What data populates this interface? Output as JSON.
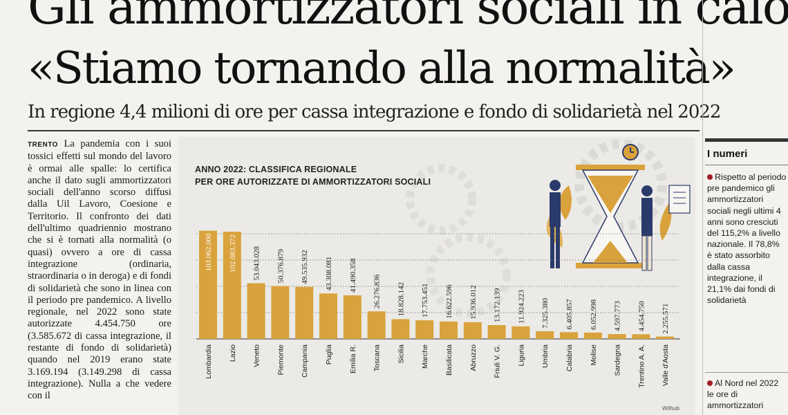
{
  "headline": {
    "line1": "Gli ammortizzatori sociali in calo",
    "line2": "«Stiamo tornando alla normalità»",
    "subhead": "In regione 4,4 milioni di ore per cassa integrazione e fondo di solidarietà nel 2022"
  },
  "article": {
    "dateline": "TRENTO",
    "body": "La pandemia con i suoi tossici effetti sul mondo del lavoro è ormai alle spalle: lo certifica anche il dato sugli ammortizzatori sociali dell'anno scorso diffusi dalla Uil Lavoro, Coesione e Territorio. Il confronto dei dati dell'ultimo quadriennio mostrano che si è tornati alla normalità (o quasi) ovvero a ore di cassa integrazione (ordinaria, straordinaria o in deroga) e di fondi di solidarietà che sono in linea con il periodo pre pandemico. A livello regionale, nel 2022 sono state autorizzate 4.454.750 ore (3.585.672 di cassa integrazione, il restante di fondo di solidarietà) quando nel 2019 erano state 3.169.194 (3.149.298 di cassa integrazione). Nulla a che vedere con il"
  },
  "sidebar": {
    "title": "I numeri",
    "item1": "Rispetto al periodo pre pandemico gli ammortizzatori sociali negli ultimi 4 anni sono cresciuti del 115,2% a livello nazionale. Il 78,8% è stato assorbito dalla cassa integrazione, il 21,1% dai fondi di solidarietà",
    "item2": "Al Nord nel 2022 le ore di ammortizzatori"
  },
  "colors": {
    "bar": "#d9a23c",
    "bar_dark": "#c08a2a",
    "bullet": "#a11d2a"
  },
  "chart_data": {
    "type": "bar",
    "title_line1": "ANNO 2022: CLASSIFICA REGIONALE",
    "title_line2": "PER ORE AUTORIZZATE DI AMMORTIZZATORI SOCIALI",
    "categories": [
      "Lombardia",
      "Lazio",
      "Veneto",
      "Piemonte",
      "Campania",
      "Puglia",
      "Emilia R.",
      "Toscana",
      "Sicilia",
      "Marche",
      "Basilicata",
      "Abruzzo",
      "Friuli V. G.",
      "Liguria",
      "Umbria",
      "Calabria",
      "Molise",
      "Sardegna",
      "Trentino A. A.",
      "Valle d'Aosta"
    ],
    "values": [
      103062000,
      102083372,
      53043028,
      50376879,
      49535932,
      43308081,
      41490358,
      26276836,
      18828142,
      17753451,
      16622596,
      15936012,
      13172139,
      11924223,
      7325380,
      6405857,
      6052998,
      4597773,
      4454750,
      2255571
    ],
    "labels": [
      "103.062.000",
      "102.083.372",
      "53.043.028",
      "50.376.879",
      "49.535.932",
      "43.308.081",
      "41.490.358",
      "26.276.836",
      "18.828.142",
      "17.753.451",
      "16.622.596",
      "15.936.012",
      "13.172.139",
      "11.924.223",
      "7.325.380",
      "6.405.857",
      "6.052.998",
      "4.597.773",
      "4.454.750",
      "2.255.571"
    ],
    "ylim": [
      0,
      110000000
    ],
    "grid": true,
    "credit": "Withub"
  }
}
